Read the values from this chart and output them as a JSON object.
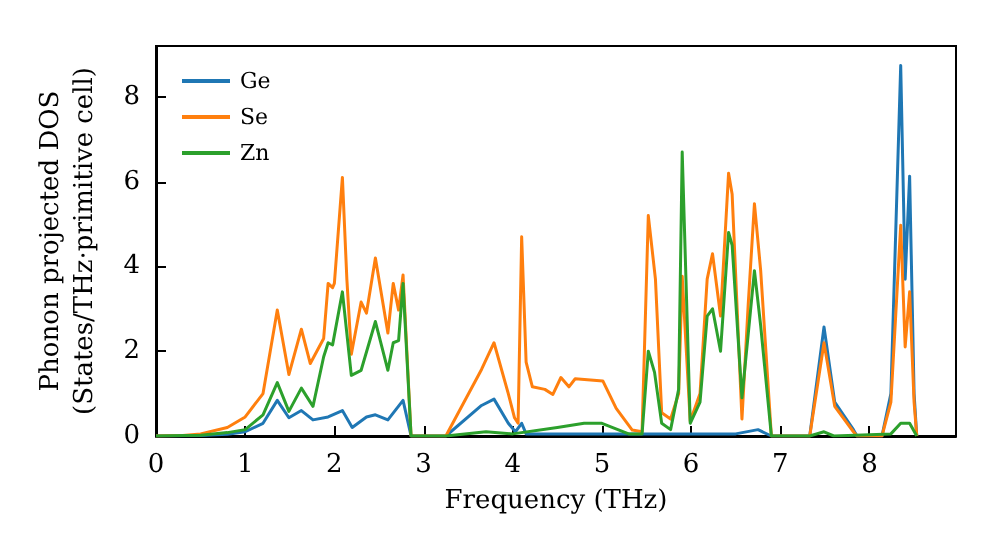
{
  "chart_data": {
    "type": "line",
    "xlabel": "Frequency (THz)",
    "ylabel": "Phonon projected DOS\n(States/THz·primitive cell)",
    "xlim": [
      0,
      8.97
    ],
    "ylim": [
      0,
      9.2
    ],
    "xticks": [
      0,
      1,
      2,
      3,
      4,
      5,
      6,
      7,
      8
    ],
    "yticks": [
      0,
      2,
      4,
      6,
      8
    ],
    "grid": false,
    "legend": "top left",
    "marker": "none",
    "line_style": "solid",
    "series": [
      {
        "name": "Ge",
        "color": "#1f77b4",
        "x": [
          0,
          0.5,
          0.8,
          1.0,
          1.2,
          1.36,
          1.49,
          1.63,
          1.76,
          1.93,
          2.09,
          2.2,
          2.36,
          2.46,
          2.6,
          2.77,
          2.86,
          2.9,
          3.25,
          3.65,
          3.79,
          3.95,
          4.03,
          4.1,
          4.15,
          4.5,
          5.0,
          5.5,
          6.0,
          6.5,
          6.75,
          6.9,
          7.33,
          7.49,
          7.61,
          7.82,
          7.86,
          8.14,
          8.24,
          8.35,
          8.4,
          8.45,
          8.5,
          8.53
        ],
        "values": [
          0,
          0.01,
          0.04,
          0.1,
          0.3,
          0.84,
          0.43,
          0.6,
          0.38,
          0.45,
          0.6,
          0.2,
          0.45,
          0.5,
          0.38,
          0.84,
          0,
          0,
          0,
          0.72,
          0.87,
          0.3,
          0.1,
          0.3,
          0.05,
          0.05,
          0.05,
          0.05,
          0.05,
          0.05,
          0.15,
          0,
          0,
          2.57,
          0.8,
          0.15,
          0,
          0,
          1.0,
          8.74,
          3.7,
          6.13,
          1.0,
          0
        ]
      },
      {
        "name": "Se",
        "color": "#ff7f0e",
        "x": [
          0,
          0.3,
          0.5,
          0.8,
          1.0,
          1.2,
          1.36,
          1.49,
          1.63,
          1.73,
          1.88,
          1.93,
          1.98,
          2.0,
          2.09,
          2.14,
          2.19,
          2.3,
          2.36,
          2.46,
          2.6,
          2.66,
          2.72,
          2.77,
          2.86,
          3.25,
          3.65,
          3.79,
          3.95,
          4.02,
          4.06,
          4.1,
          4.15,
          4.22,
          4.36,
          4.45,
          4.54,
          4.63,
          4.7,
          5.01,
          5.16,
          5.34,
          5.45,
          5.52,
          5.6,
          5.67,
          5.77,
          5.86,
          5.9,
          5.99,
          6.1,
          6.18,
          6.24,
          6.33,
          6.42,
          6.46,
          6.57,
          6.64,
          6.71,
          6.78,
          6.9,
          7.33,
          7.49,
          7.61,
          7.82,
          7.86,
          8.14,
          8.24,
          8.35,
          8.4,
          8.45,
          8.5,
          8.53
        ],
        "values": [
          0,
          0.01,
          0.05,
          0.2,
          0.45,
          1.0,
          2.97,
          1.45,
          2.52,
          1.71,
          2.3,
          3.6,
          3.5,
          3.6,
          6.1,
          3.7,
          1.93,
          3.16,
          2.9,
          4.2,
          2.43,
          3.6,
          2.97,
          3.8,
          0,
          0,
          1.57,
          2.2,
          1.0,
          0.43,
          0.3,
          4.7,
          1.74,
          1.16,
          1.1,
          0.98,
          1.38,
          1.16,
          1.35,
          1.3,
          0.65,
          0.14,
          0.1,
          5.2,
          3.7,
          0.55,
          0.4,
          1.0,
          3.77,
          0.35,
          1.0,
          3.7,
          4.3,
          2.83,
          6.2,
          5.7,
          0.4,
          3.1,
          5.48,
          3.9,
          0,
          0,
          2.2,
          0.7,
          0.1,
          0,
          0,
          0.8,
          4.97,
          2.1,
          3.4,
          0.8,
          0
        ]
      },
      {
        "name": "Zn",
        "color": "#2ca02c",
        "x": [
          0,
          0.5,
          0.8,
          1.0,
          1.2,
          1.36,
          1.49,
          1.63,
          1.76,
          1.88,
          1.93,
          1.98,
          2.09,
          2.19,
          2.3,
          2.46,
          2.6,
          2.66,
          2.72,
          2.77,
          2.86,
          3.25,
          3.7,
          4.0,
          4.5,
          4.8,
          5.0,
          5.3,
          5.45,
          5.52,
          5.59,
          5.67,
          5.77,
          5.86,
          5.9,
          5.99,
          6.1,
          6.18,
          6.24,
          6.33,
          6.42,
          6.46,
          6.57,
          6.64,
          6.71,
          6.78,
          6.9,
          7.33,
          7.49,
          7.6,
          8.24,
          8.35,
          8.45,
          8.53
        ],
        "values": [
          0,
          0.02,
          0.08,
          0.15,
          0.5,
          1.26,
          0.58,
          1.13,
          0.7,
          1.87,
          2.2,
          2.15,
          3.4,
          1.43,
          1.55,
          2.7,
          1.55,
          2.2,
          2.25,
          3.6,
          0,
          0,
          0.1,
          0.05,
          0.2,
          0.3,
          0.3,
          0.05,
          0.05,
          2.0,
          1.5,
          0.3,
          0.15,
          1.1,
          6.7,
          0.3,
          0.8,
          2.83,
          3.0,
          2.0,
          4.8,
          4.5,
          0.9,
          2.4,
          3.9,
          2.6,
          0,
          0,
          0.1,
          0,
          0.05,
          0.3,
          0.3,
          0
        ]
      }
    ]
  }
}
